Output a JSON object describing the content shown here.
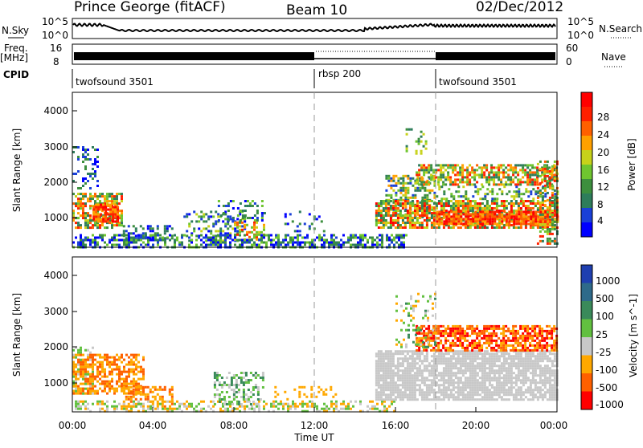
{
  "header": {
    "station": "Prince George (fitACF)",
    "beam": "Beam 10",
    "date": "02/Dec/2012"
  },
  "top_panels": {
    "nsky_label": "N.Sky",
    "nsky_ticks": [
      "10^5",
      "10^0"
    ],
    "nsearch_label": "N.Search",
    "freq_label_1": "Freq.",
    "freq_label_2": "[MHz]",
    "freq_ticks": [
      "16",
      "8"
    ],
    "nave_label": "Nave",
    "nave_ticks": [
      "60",
      "0"
    ],
    "cpid_label": "CPID",
    "cpid_segments": [
      {
        "name": "twofsound 3501",
        "start_h": 0,
        "end_h": 12
      },
      {
        "name": "rbsp 200",
        "start_h": 12,
        "end_h": 18
      },
      {
        "name": "twofsound 3501",
        "start_h": 18,
        "end_h": 24
      }
    ],
    "nave_dotted_span_h": [
      12,
      18
    ]
  },
  "chart_data": [
    {
      "type": "heatmap",
      "name": "Power",
      "ylabel": "Slant Range [km]",
      "ylim": [
        180,
        4500
      ],
      "xlim": [
        0,
        24
      ],
      "y_ticks": [
        "1000",
        "2000",
        "3000",
        "4000"
      ],
      "colorbar_label": "Power [dB]",
      "colorbar_ticks": [
        "4",
        "8",
        "12",
        "16",
        "20",
        "24",
        "28"
      ],
      "colors": [
        "#0000ff",
        "#1a40d8",
        "#2e7d5b",
        "#3d8f3e",
        "#6fc52f",
        "#c7d21a",
        "#ffa000",
        "#ff6000",
        "#ff2000",
        "#ff0000"
      ],
      "scatter_regions": [
        {
          "x0": 0.0,
          "x1": 1.2,
          "y0": 1800,
          "y1": 3000,
          "d": 0.25,
          "c": [
            0,
            3
          ]
        },
        {
          "x0": 0.0,
          "x1": 2.5,
          "y0": 700,
          "y1": 1700,
          "d": 0.7,
          "c": [
            2,
            8
          ]
        },
        {
          "x0": 1.0,
          "x1": 2.3,
          "y0": 900,
          "y1": 1400,
          "d": 0.75,
          "c": [
            6,
            9
          ]
        },
        {
          "x0": 2.5,
          "x1": 5.0,
          "y0": 400,
          "y1": 800,
          "d": 0.45,
          "c": [
            0,
            3
          ]
        },
        {
          "x0": 5.5,
          "x1": 8.5,
          "y0": 350,
          "y1": 1200,
          "d": 0.35,
          "c": [
            0,
            5
          ]
        },
        {
          "x0": 7.2,
          "x1": 9.5,
          "y0": 900,
          "y1": 1500,
          "d": 0.35,
          "c": [
            0,
            4
          ]
        },
        {
          "x0": 8.0,
          "x1": 9.5,
          "y0": 400,
          "y1": 900,
          "d": 0.45,
          "c": [
            3,
            8
          ]
        },
        {
          "x0": 0.0,
          "x1": 16.5,
          "y0": 180,
          "y1": 550,
          "d": 0.55,
          "c": [
            0,
            4
          ]
        },
        {
          "x0": 10.5,
          "x1": 12.5,
          "y0": 600,
          "y1": 1200,
          "d": 0.2,
          "c": [
            0,
            3
          ]
        },
        {
          "x0": 15.5,
          "x1": 18.0,
          "y0": 1000,
          "y1": 2200,
          "d": 0.5,
          "c": [
            1,
            6
          ]
        },
        {
          "x0": 15.0,
          "x1": 24.0,
          "y0": 700,
          "y1": 1500,
          "d": 0.75,
          "c": [
            2,
            9
          ]
        },
        {
          "x0": 18.0,
          "x1": 24.0,
          "y0": 800,
          "y1": 1200,
          "d": 0.8,
          "c": [
            6,
            9
          ]
        },
        {
          "x0": 17.0,
          "x1": 24.0,
          "y0": 1900,
          "y1": 2500,
          "d": 0.65,
          "c": [
            2,
            8
          ]
        },
        {
          "x0": 18.0,
          "x1": 24.0,
          "y0": 1500,
          "y1": 1900,
          "d": 0.3,
          "c": [
            1,
            5
          ]
        },
        {
          "x0": 23.0,
          "x1": 24.0,
          "y0": 300,
          "y1": 2600,
          "d": 0.5,
          "c": [
            2,
            8
          ]
        },
        {
          "x0": 16.5,
          "x1": 17.5,
          "y0": 2800,
          "y1": 3500,
          "d": 0.15,
          "c": [
            2,
            5
          ]
        }
      ]
    },
    {
      "type": "heatmap",
      "name": "Velocity",
      "ylabel": "Slant Range [km]",
      "ylim": [
        180,
        4500
      ],
      "xlim": [
        0,
        24
      ],
      "y_ticks": [
        "1000",
        "2000",
        "3000",
        "4000"
      ],
      "x_ticks": [
        "00:00",
        "04:00",
        "08:00",
        "12:00",
        "16:00",
        "20:00",
        "00:00"
      ],
      "xlabel": "Time UT",
      "colorbar_label": "Velocity [m s^-1]",
      "colorbar_ticks": [
        "1000",
        "500",
        "100",
        "25",
        "-25",
        "-100",
        "-500",
        "-1000"
      ],
      "colors": [
        "#1f3fb0",
        "#2e6a8a",
        "#3a8a5a",
        "#62c040",
        "#c8c8c8",
        "#ffa800",
        "#ff6000",
        "#ff0000"
      ],
      "scatter_regions": [
        {
          "x0": 0.0,
          "x1": 1.0,
          "y0": 700,
          "y1": 2000,
          "d": 0.4,
          "c": [
            3,
            4
          ]
        },
        {
          "x0": 0.0,
          "x1": 3.5,
          "y0": 700,
          "y1": 1800,
          "d": 0.6,
          "c": [
            5,
            6
          ]
        },
        {
          "x0": 2.5,
          "x1": 5.0,
          "y0": 350,
          "y1": 900,
          "d": 0.5,
          "c": [
            5,
            6
          ]
        },
        {
          "x0": 0.0,
          "x1": 16.0,
          "y0": 180,
          "y1": 500,
          "d": 0.45,
          "c": [
            3,
            5
          ]
        },
        {
          "x0": 7.0,
          "x1": 9.5,
          "y0": 400,
          "y1": 1300,
          "d": 0.4,
          "c": [
            2,
            4
          ]
        },
        {
          "x0": 15.0,
          "x1": 24.0,
          "y0": 500,
          "y1": 1900,
          "d": 0.8,
          "c": [
            4,
            4
          ]
        },
        {
          "x0": 17.0,
          "x1": 24.0,
          "y0": 1900,
          "y1": 2600,
          "d": 0.7,
          "c": [
            5,
            7
          ]
        },
        {
          "x0": 10.0,
          "x1": 13.0,
          "y0": 500,
          "y1": 900,
          "d": 0.2,
          "c": [
            5,
            5
          ]
        },
        {
          "x0": 16.0,
          "x1": 18.0,
          "y0": 2000,
          "y1": 3500,
          "d": 0.2,
          "c": [
            2,
            5
          ]
        }
      ]
    }
  ]
}
